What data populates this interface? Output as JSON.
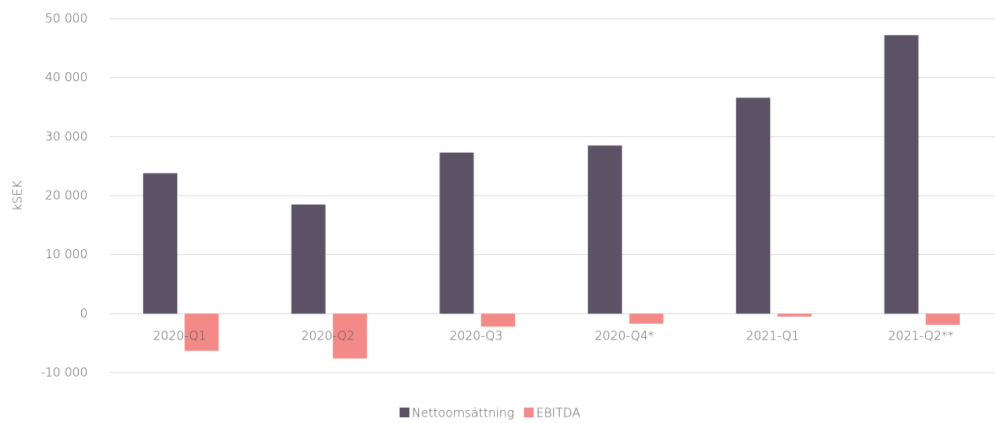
{
  "chart_data": {
    "type": "bar",
    "y_label": "kSEK",
    "categories": [
      "2020-Q1",
      "2020-Q2",
      "2020-Q3",
      "2020-Q4*",
      "2021-Q1",
      "2021-Q2**"
    ],
    "series": [
      {
        "name": "Nettoomsättning",
        "color": "#5c5266",
        "values": [
          23800,
          18500,
          27300,
          28500,
          36600,
          47200
        ]
      },
      {
        "name": "EBITDA",
        "color": "#f48a88",
        "values": [
          -6300,
          -7600,
          -2200,
          -1700,
          -500,
          -1900
        ]
      }
    ],
    "ylim": [
      -10000,
      50000
    ],
    "yticks": [
      {
        "value": -10000,
        "label": "-10 000"
      },
      0,
      {
        "value": 10000,
        "label": "10 000"
      },
      {
        "value": 20000,
        "label": "20 000"
      },
      {
        "value": 30000,
        "label": "30 000"
      },
      {
        "value": 40000,
        "label": "40 000"
      },
      {
        "value": 50000,
        "label": "50 000"
      }
    ],
    "grid": true,
    "legend": "bottom"
  }
}
